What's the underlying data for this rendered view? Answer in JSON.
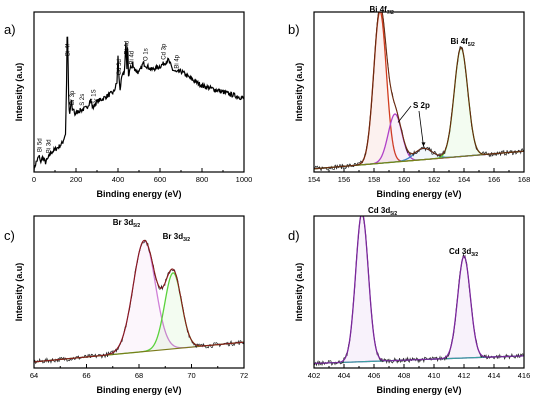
{
  "chart_data": [
    {
      "id": "a",
      "panel_label": "a)",
      "type": "line",
      "xlabel": "Binding energy (eV)",
      "ylabel": "Intensity (a.u)",
      "xlim": [
        0,
        1000
      ],
      "ylim": [
        0,
        100
      ],
      "xticks": [
        0,
        200,
        400,
        600,
        800,
        1000
      ],
      "series": [
        {
          "color": "#000000",
          "x": [
            0,
            10,
            25,
            30,
            40,
            55,
            65,
            80,
            100,
            120,
            135,
            150,
            155,
            157,
            159,
            161,
            163,
            166,
            170,
            178,
            183,
            188,
            195,
            210,
            250,
            270,
            280,
            290,
            300,
            330,
            380,
            395,
            400,
            405,
            410,
            420,
            430,
            438,
            442,
            446,
            450,
            460,
            466,
            470,
            480,
            500,
            520,
            540,
            560,
            600,
            620,
            640,
            660,
            680,
            700,
            750,
            800,
            850,
            900,
            950,
            1000
          ],
          "y": [
            2,
            6,
            10,
            6,
            9,
            6,
            8,
            12,
            14,
            16,
            18,
            24,
            55,
            90,
            70,
            96,
            58,
            40,
            36,
            45,
            38,
            40,
            36,
            38,
            40,
            45,
            40,
            42,
            44,
            46,
            50,
            56,
            72,
            58,
            52,
            60,
            62,
            82,
            60,
            84,
            60,
            66,
            64,
            68,
            64,
            62,
            68,
            66,
            64,
            66,
            68,
            70,
            64,
            62,
            63,
            58,
            54,
            52,
            50,
            48,
            46
          ]
        }
      ],
      "annotations": [
        {
          "text": "Bi 5d",
          "x": 25
        },
        {
          "text": "Bi 3d",
          "x": 70
        },
        {
          "text": "Bi 4f",
          "x": 159
        },
        {
          "text": "Br 3p",
          "x": 182
        },
        {
          "text": "S 2s",
          "x": 228
        },
        {
          "text": "C 1S",
          "x": 284
        },
        {
          "text": "Cd 3d",
          "x": 405
        },
        {
          "text": "Bi 4d",
          "x": 440
        },
        {
          "text": "Bi 4d",
          "x": 464
        },
        {
          "text": "O 1s",
          "x": 531
        },
        {
          "text": "Cd 3p",
          "x": 617
        },
        {
          "text": "Bi 4p",
          "x": 679
        }
      ]
    },
    {
      "id": "b",
      "panel_label": "b)",
      "type": "line",
      "xlabel": "Binding energy (eV)",
      "ylabel": "Intensity (a.u)",
      "xlim": [
        154,
        168
      ],
      "ylim": [
        0,
        100
      ],
      "xticks": [
        154,
        156,
        158,
        160,
        162,
        164,
        166,
        168
      ],
      "peaks": [
        {
          "center": 158.4,
          "height": 95,
          "width": 0.42,
          "color": "#d23c1e"
        },
        {
          "center": 159.4,
          "height": 30,
          "width": 0.45,
          "color": "#b040c8"
        },
        {
          "center": 161.3,
          "height": 7,
          "width": 0.6,
          "color": "#3a7ec8"
        },
        {
          "center": 163.8,
          "height": 68,
          "width": 0.45,
          "color": "#5ad23c"
        }
      ],
      "baseline": {
        "y0": 2,
        "y1": 13,
        "color": "#7a7a1a"
      },
      "envelope_color": "#6b2a10",
      "labels": [
        {
          "text": "Bi 4f",
          "sub": "7/2",
          "x": 157.7,
          "y": 100
        },
        {
          "text": "Bi 4f",
          "sub": "5/2",
          "x": 163.1,
          "y": 80
        },
        {
          "text": "S 2p",
          "x": 160.6,
          "y": 40
        }
      ]
    },
    {
      "id": "c",
      "panel_label": "c)",
      "type": "line",
      "xlabel": "Binding energy (eV)",
      "ylabel": "Intensity (a.u)",
      "xlim": [
        64,
        72
      ],
      "ylim": [
        0,
        100
      ],
      "xticks": [
        64,
        66,
        68,
        70,
        72
      ],
      "peaks": [
        {
          "center": 68.2,
          "height": 73,
          "width": 0.42,
          "color": "#d080d8"
        },
        {
          "center": 69.3,
          "height": 50,
          "width": 0.32,
          "color": "#5ad23c"
        }
      ],
      "baseline": {
        "y0": 4,
        "y1": 17,
        "color": "#7a7a1a"
      },
      "envelope_color": "#8a1c1c",
      "labels": [
        {
          "text": "Br 3d",
          "sub": "5/2",
          "x": 67.0,
          "y": 94
        },
        {
          "text": "Br 3d",
          "sub": "3/2",
          "x": 68.9,
          "y": 85
        }
      ]
    },
    {
      "id": "d",
      "panel_label": "d)",
      "type": "line",
      "xlabel": "Binding energy (eV)",
      "ylabel": "Intensity (a.u)",
      "xlim": [
        402,
        416
      ],
      "ylim": [
        0,
        100
      ],
      "xticks": [
        402,
        404,
        406,
        408,
        410,
        412,
        414,
        416
      ],
      "peaks": [
        {
          "center": 405.2,
          "height": 98,
          "width": 0.42,
          "color": "#a040c8"
        },
        {
          "center": 412.0,
          "height": 67,
          "width": 0.42,
          "color": "#a040c8"
        }
      ],
      "baseline": {
        "y0": 3,
        "y1": 8,
        "color": "#3aa0a0"
      },
      "envelope_color": "#7a2a9a",
      "labels": [
        {
          "text": "Cd 3d",
          "sub": "5/2",
          "x": 405.6,
          "y": 102
        },
        {
          "text": "Cd 3d",
          "sub": "3/2",
          "x": 411.0,
          "y": 75
        }
      ]
    }
  ]
}
